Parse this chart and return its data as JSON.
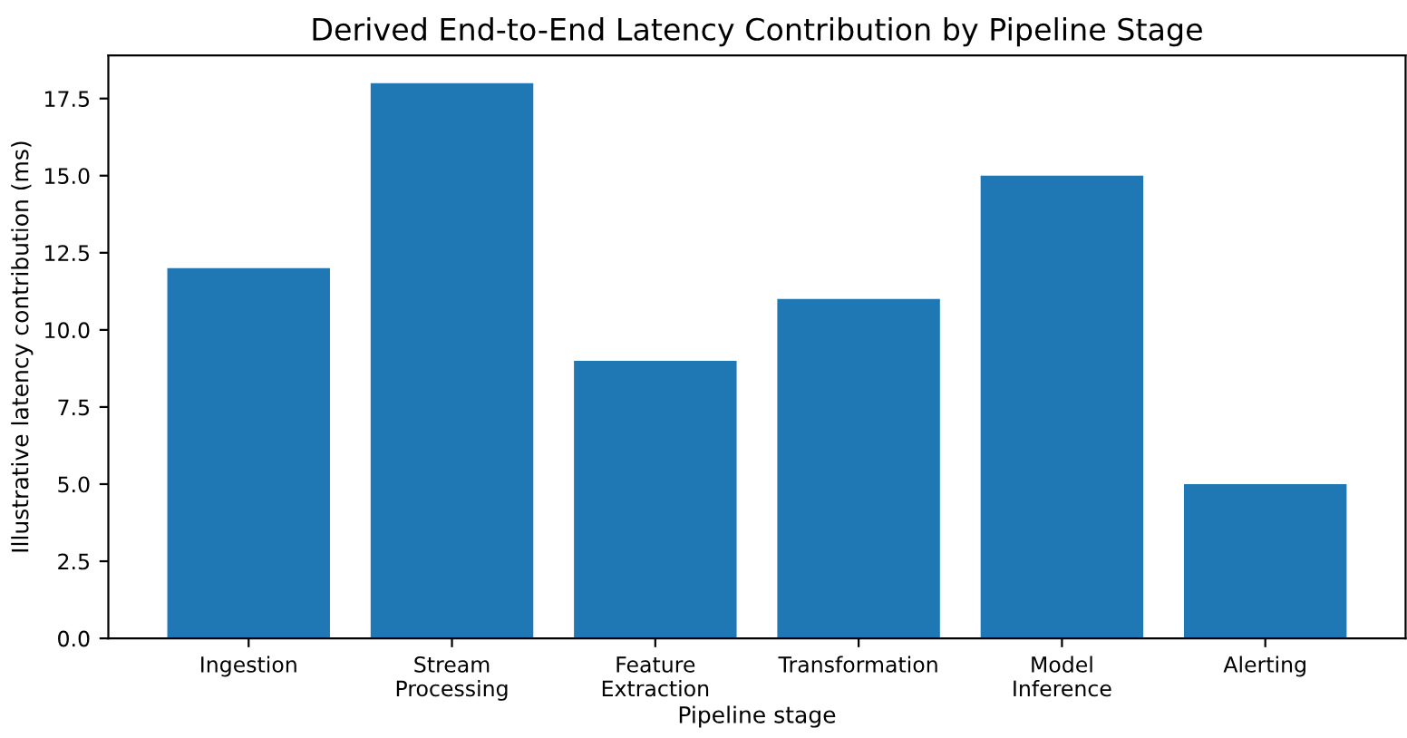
{
  "chart_data": {
    "type": "bar",
    "title": "Derived End-to-End Latency Contribution by Pipeline Stage",
    "xlabel": "Pipeline stage",
    "ylabel": "Illustrative latency contribution (ms)",
    "categories": [
      "Ingestion",
      "Stream\nProcessing",
      "Feature\nExtraction",
      "Transformation",
      "Model\nInference",
      "Alerting"
    ],
    "values": [
      12,
      18,
      9,
      11,
      15,
      5
    ],
    "color": "#1f77b4",
    "ylim": [
      0,
      18.9
    ],
    "yticks": [
      {
        "value": 0,
        "label": "0.0"
      },
      {
        "value": 2.5,
        "label": "2.5"
      },
      {
        "value": 5,
        "label": "5.0"
      },
      {
        "value": 7.5,
        "label": "7.5"
      },
      {
        "value": 10,
        "label": "10.0"
      },
      {
        "value": 12.5,
        "label": "12.5"
      },
      {
        "value": 15,
        "label": "15.0"
      },
      {
        "value": 17.5,
        "label": "17.5"
      }
    ],
    "grid": false
  }
}
